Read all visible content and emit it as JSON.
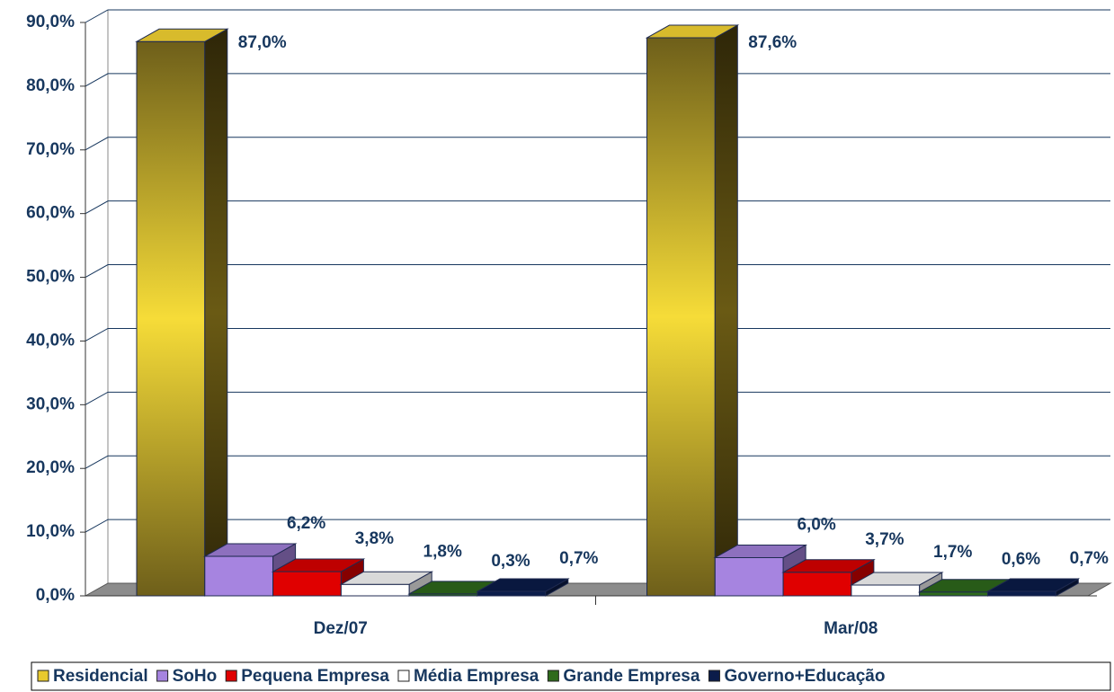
{
  "chart_data": {
    "type": "bar3d",
    "categories": [
      "Dez/07",
      "Mar/08"
    ],
    "series": [
      {
        "name": "Residencial",
        "color": "#e8c92e",
        "values": [
          87.0,
          87.6
        ],
        "value_labels": [
          "87,0%",
          "87,6%"
        ]
      },
      {
        "name": "SoHo",
        "color": "#a684e0",
        "values": [
          6.2,
          6.0
        ],
        "value_labels": [
          "6,2%",
          "6,0%"
        ]
      },
      {
        "name": "Pequena Empresa",
        "color": "#e00000",
        "values": [
          3.8,
          3.7
        ],
        "value_labels": [
          "3,8%",
          "3,7%"
        ]
      },
      {
        "name": "Média Empresa",
        "color": "#ffffff",
        "values": [
          1.8,
          1.7
        ],
        "value_labels": [
          "1,8%",
          "1,7%"
        ]
      },
      {
        "name": "Grande Empresa",
        "color": "#2f6b1c",
        "values": [
          0.3,
          0.6
        ],
        "value_labels": [
          "0,3%",
          "0,6%"
        ]
      },
      {
        "name": "Governo+Educação",
        "color": "#0b1c4a",
        "values": [
          0.7,
          0.7
        ],
        "value_labels": [
          "0,7%",
          "0,7%"
        ]
      }
    ],
    "ylim": [
      0,
      90
    ],
    "yticks": [
      {
        "value": 0,
        "label": "0,0%"
      },
      {
        "value": 10,
        "label": "10,0%"
      },
      {
        "value": 20,
        "label": "20,0%"
      },
      {
        "value": 30,
        "label": "30,0%"
      },
      {
        "value": 40,
        "label": "40,0%"
      },
      {
        "value": 50,
        "label": "50,0%"
      },
      {
        "value": 60,
        "label": "60,0%"
      },
      {
        "value": 70,
        "label": "70,0%"
      },
      {
        "value": 80,
        "label": "80,0%"
      },
      {
        "value": 90,
        "label": "90,0%"
      }
    ],
    "grid": true
  }
}
